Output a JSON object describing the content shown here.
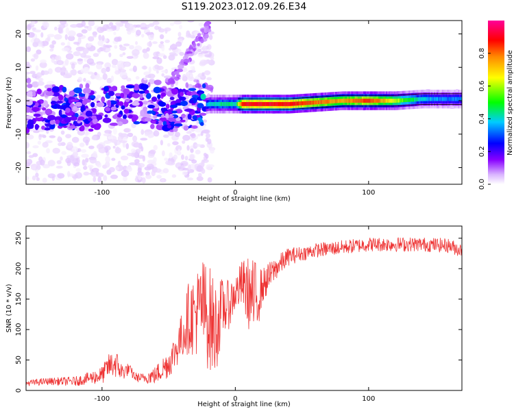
{
  "figure_title": "S119.2023.012.09.26.E34",
  "colors": {
    "snr_line": "#ee3333",
    "axis": "#000000",
    "colormap": [
      "#ffffff",
      "#d9b3ff",
      "#8800ff",
      "#0000ff",
      "#00ccff",
      "#00ff00",
      "#ffff00",
      "#ff8800",
      "#ff0000",
      "#ff0099"
    ]
  },
  "chart_data": [
    {
      "type": "heatmap",
      "title": "",
      "xlabel": "Height of straight line (km)",
      "ylabel": "Frequency (Hz)",
      "xlim": [
        -157,
        170
      ],
      "ylim": [
        -25,
        24
      ],
      "x_ticks": [
        -100,
        0,
        100
      ],
      "y_ticks": [
        -20,
        -10,
        0,
        10,
        20
      ],
      "grid": false,
      "colorbar": {
        "label": "Normalized spectral amplitude",
        "range": [
          0,
          1
        ],
        "ticks": [
          "0.0",
          "0.2",
          "0.4",
          "0.6",
          "0.8"
        ]
      },
      "ridge": [
        {
          "x": -150,
          "f": -3,
          "amp": 0.25
        },
        {
          "x": -130,
          "f": -2,
          "amp": 0.3
        },
        {
          "x": -110,
          "f": -3,
          "amp": 0.3
        },
        {
          "x": -90,
          "f": -1,
          "amp": 0.3
        },
        {
          "x": -70,
          "f": -1,
          "amp": 0.3
        },
        {
          "x": -50,
          "f": -3,
          "amp": 0.3
        },
        {
          "x": -30,
          "f": -2,
          "amp": 0.3
        },
        {
          "x": -20,
          "f": -1,
          "amp": 0.45
        },
        {
          "x": -10,
          "f": -1,
          "amp": 0.5
        },
        {
          "x": 0,
          "f": -1,
          "amp": 0.5
        },
        {
          "x": 5,
          "f": -1,
          "amp": 0.9
        },
        {
          "x": 20,
          "f": -1,
          "amp": 0.9
        },
        {
          "x": 40,
          "f": -1,
          "amp": 0.9
        },
        {
          "x": 60,
          "f": -0.5,
          "amp": 0.8
        },
        {
          "x": 80,
          "f": 0,
          "amp": 0.75
        },
        {
          "x": 100,
          "f": 0,
          "amp": 0.85
        },
        {
          "x": 120,
          "f": 0,
          "amp": 0.65
        },
        {
          "x": 140,
          "f": 0.5,
          "amp": 0.45
        },
        {
          "x": 160,
          "f": 0.5,
          "amp": 0.4
        }
      ]
    },
    {
      "type": "line",
      "title": "",
      "xlabel": "Height of straight line (km)",
      "ylabel": "SNR (10 * v/v)",
      "xlim": [
        -157,
        170
      ],
      "ylim": [
        0,
        270
      ],
      "x_ticks": [
        -100,
        0,
        100
      ],
      "y_ticks": [
        0,
        50,
        100,
        150,
        200,
        250
      ],
      "grid": false,
      "series": [
        {
          "x": [
            -157,
            -140,
            -120,
            -110,
            -100,
            -95,
            -90,
            -85,
            -80,
            -75,
            -70,
            -60,
            -50,
            -45,
            -40,
            -35,
            -30,
            -25,
            -20,
            -15,
            -10,
            -5,
            0,
            5,
            10,
            15,
            20,
            30,
            40,
            50,
            60,
            80,
            100,
            120,
            140,
            160,
            170
          ],
          "y": [
            12,
            15,
            15,
            20,
            25,
            40,
            45,
            30,
            35,
            22,
            20,
            25,
            45,
            65,
            90,
            120,
            125,
            140,
            120,
            100,
            135,
            140,
            160,
            175,
            160,
            145,
            170,
            200,
            220,
            225,
            230,
            235,
            240,
            240,
            240,
            238,
            230
          ],
          "noise": [
            5,
            6,
            8,
            10,
            15,
            20,
            25,
            15,
            10,
            8,
            8,
            15,
            25,
            30,
            40,
            60,
            70,
            80,
            90,
            80,
            50,
            40,
            30,
            40,
            60,
            70,
            30,
            20,
            15,
            12,
            12,
            12,
            12,
            12,
            12,
            12,
            12
          ]
        }
      ]
    }
  ]
}
